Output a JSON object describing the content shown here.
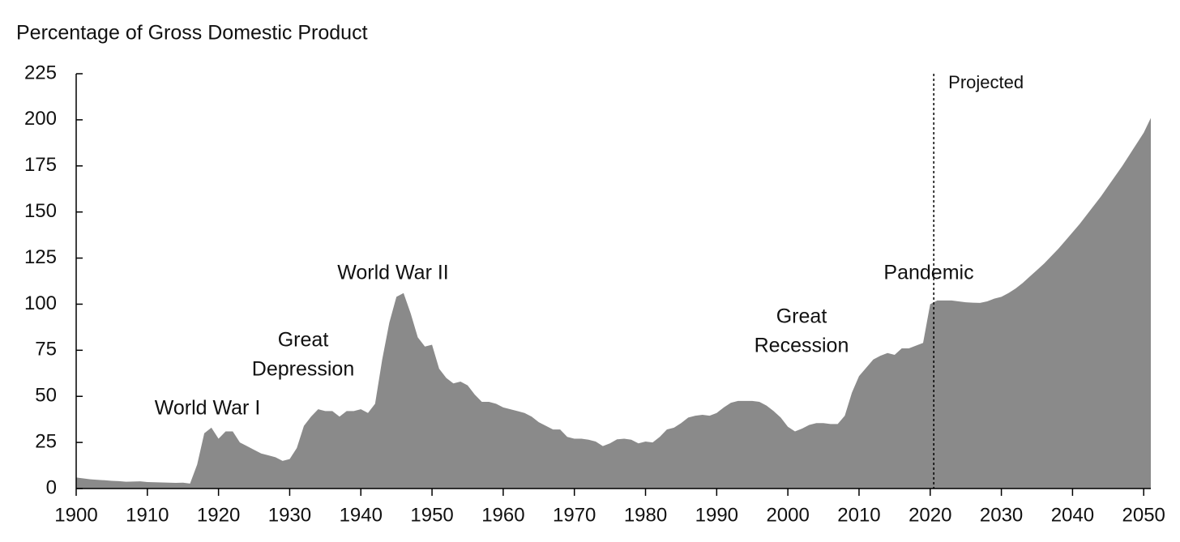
{
  "chart_data": {
    "type": "area",
    "y_axis_label": "Percentage of Gross Domestic Product",
    "x": [
      1900,
      1901,
      1902,
      1903,
      1904,
      1905,
      1906,
      1907,
      1908,
      1909,
      1910,
      1911,
      1912,
      1913,
      1914,
      1915,
      1916,
      1917,
      1918,
      1919,
      1920,
      1921,
      1922,
      1923,
      1924,
      1925,
      1926,
      1927,
      1928,
      1929,
      1930,
      1931,
      1932,
      1933,
      1934,
      1935,
      1936,
      1937,
      1938,
      1939,
      1940,
      1941,
      1942,
      1943,
      1944,
      1945,
      1946,
      1947,
      1948,
      1949,
      1950,
      1951,
      1952,
      1953,
      1954,
      1955,
      1956,
      1957,
      1958,
      1959,
      1960,
      1961,
      1962,
      1963,
      1964,
      1965,
      1966,
      1967,
      1968,
      1969,
      1970,
      1971,
      1972,
      1973,
      1974,
      1975,
      1976,
      1977,
      1978,
      1979,
      1980,
      1981,
      1982,
      1983,
      1984,
      1985,
      1986,
      1987,
      1988,
      1989,
      1990,
      1991,
      1992,
      1993,
      1994,
      1995,
      1996,
      1997,
      1998,
      1999,
      2000,
      2001,
      2002,
      2003,
      2004,
      2005,
      2006,
      2007,
      2008,
      2009,
      2010,
      2011,
      2012,
      2013,
      2014,
      2015,
      2016,
      2017,
      2018,
      2019,
      2020,
      2021,
      2022,
      2023,
      2024,
      2025,
      2026,
      2027,
      2028,
      2029,
      2030,
      2031,
      2032,
      2033,
      2034,
      2035,
      2036,
      2037,
      2038,
      2039,
      2040,
      2041,
      2042,
      2043,
      2044,
      2045,
      2046,
      2047,
      2048,
      2049,
      2050,
      2051
    ],
    "series": [
      {
        "color": "#8a8a8a",
        "values": [
          6,
          5.5,
          5,
          4.7,
          4.5,
          4.2,
          4,
          3.7,
          3.8,
          3.9,
          3.5,
          3.4,
          3.3,
          3.2,
          3.1,
          3.2,
          2.7,
          13,
          30,
          33,
          27,
          31,
          31,
          25,
          23,
          21,
          19,
          18,
          17,
          15,
          16,
          22,
          34,
          39,
          43,
          42,
          42,
          39,
          42,
          42,
          43,
          41,
          46,
          70,
          90,
          104,
          106,
          95,
          82,
          77,
          78,
          65,
          60,
          57,
          58,
          56,
          51,
          47,
          47,
          46,
          44,
          43,
          42,
          41,
          39,
          36,
          34,
          32,
          32,
          28,
          27,
          27,
          26.5,
          25.5,
          23,
          24.5,
          26.7,
          27,
          26.5,
          24.5,
          25.5,
          25,
          28,
          32,
          33,
          35.5,
          38.5,
          39.5,
          40,
          39.5,
          41,
          44,
          46.5,
          47.5,
          47.5,
          47.5,
          47,
          45,
          42,
          38.5,
          33.5,
          31,
          32.5,
          34.5,
          35.5,
          35.5,
          35,
          35,
          39.5,
          52,
          61,
          65.5,
          70,
          72,
          73.5,
          72.5,
          76,
          76,
          77.5,
          79,
          100,
          102,
          102,
          102,
          101.5,
          101,
          100.8,
          100.7,
          101.5,
          103,
          104,
          106,
          108.5,
          111.5,
          115,
          118.5,
          122,
          126,
          130,
          134.5,
          139,
          143.5,
          148.5,
          153.5,
          158.5,
          164,
          169.5,
          175,
          181,
          187,
          193,
          201
        ]
      }
    ],
    "xlim": [
      1900,
      2051
    ],
    "xticks": [
      1900,
      1910,
      1920,
      1930,
      1940,
      1950,
      1960,
      1970,
      1980,
      1990,
      2000,
      2010,
      2020,
      2030,
      2040,
      2050
    ],
    "ylim": [
      0,
      225
    ],
    "yticks": [
      0,
      25,
      50,
      75,
      100,
      125,
      150,
      175,
      200,
      225
    ],
    "projection": {
      "x": 2020.5,
      "label": "Projected"
    },
    "annotations": [
      {
        "lines": [
          "World War I"
        ]
      },
      {
        "lines": [
          "Great",
          "Depression"
        ]
      },
      {
        "lines": [
          "World War II"
        ]
      },
      {
        "lines": [
          "Great",
          "Recession"
        ]
      },
      {
        "lines": [
          "Pandemic"
        ]
      }
    ]
  }
}
